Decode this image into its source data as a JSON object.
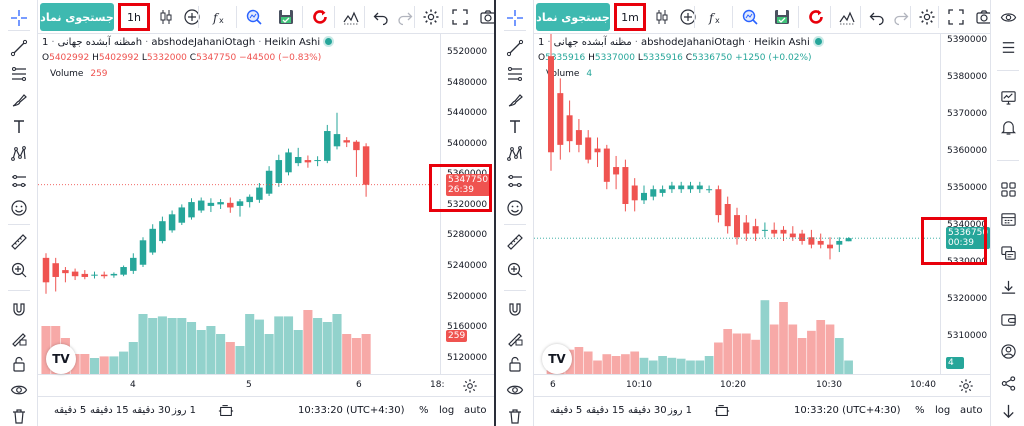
{
  "colors": {
    "up": "#26a69a",
    "down": "#ef5350",
    "accent": "#3eb9b0",
    "highlight": "#e8000b"
  },
  "left_pane": {
    "symbol_search_label": "جستجوی نماد",
    "interval": "1h",
    "legend": {
      "title": "مظنه آبشده جهانی",
      "interval": "1h",
      "source": "abshodeJahaniOtagh",
      "style": "Heikin Ashi",
      "o_label": "O",
      "o": "5402992",
      "h_label": "H",
      "h": "5402992",
      "l_label": "L",
      "l": "5332000",
      "c_label": "C",
      "c": "5347750",
      "change": "−44500 (−0.83%)",
      "volume_label": "Volume",
      "volume": "259"
    },
    "price_tag": "5347750",
    "countdown": "26:39",
    "volume_tag": "259",
    "timezone": "10:33:20 (UTC+4:30)",
    "log_label": "log",
    "pct_label": "%",
    "auto_label": "auto",
    "ranges": [
      "5 دقیقه",
      "15 دقیقه",
      "30 دقیقه",
      "1 روز"
    ],
    "chart_data": {
      "type": "candlestick",
      "title": "",
      "style": "Heikin Ashi",
      "y_ticks": [
        5520000,
        5480000,
        5440000,
        5400000,
        5360000,
        5320000,
        5280000,
        5240000,
        5200000,
        5160000,
        5120000
      ],
      "ylim": [
        5100000,
        5545000
      ],
      "x_ticks": [
        "4",
        "5",
        "6",
        "18:"
      ],
      "candles": [
        {
          "o": 5252000,
          "h": 5258000,
          "l": 5205000,
          "c": 5220000
        },
        {
          "o": 5245000,
          "h": 5252000,
          "l": 5208000,
          "c": 5227000
        },
        {
          "o": 5236000,
          "h": 5240000,
          "l": 5220000,
          "c": 5232000
        },
        {
          "o": 5234000,
          "h": 5238000,
          "l": 5223000,
          "c": 5228000
        },
        {
          "o": 5231000,
          "h": 5236000,
          "l": 5224000,
          "c": 5227000
        },
        {
          "o": 5229000,
          "h": 5234000,
          "l": 5225000,
          "c": 5230000
        },
        {
          "o": 5230000,
          "h": 5234000,
          "l": 5225000,
          "c": 5228000
        },
        {
          "o": 5229000,
          "h": 5233000,
          "l": 5226000,
          "c": 5231000
        },
        {
          "o": 5230000,
          "h": 5242000,
          "l": 5228000,
          "c": 5240000
        },
        {
          "o": 5235000,
          "h": 5258000,
          "l": 5231000,
          "c": 5252000
        },
        {
          "o": 5243000,
          "h": 5279000,
          "l": 5240000,
          "c": 5275000
        },
        {
          "o": 5259000,
          "h": 5296000,
          "l": 5256000,
          "c": 5290000
        },
        {
          "o": 5274000,
          "h": 5306000,
          "l": 5271000,
          "c": 5300000
        },
        {
          "o": 5288000,
          "h": 5314000,
          "l": 5285000,
          "c": 5309000
        },
        {
          "o": 5298000,
          "h": 5322000,
          "l": 5295000,
          "c": 5318000
        },
        {
          "o": 5305000,
          "h": 5330000,
          "l": 5302000,
          "c": 5325000
        },
        {
          "o": 5314000,
          "h": 5331000,
          "l": 5311000,
          "c": 5327000
        },
        {
          "o": 5320000,
          "h": 5330000,
          "l": 5312000,
          "c": 5324000
        },
        {
          "o": 5322000,
          "h": 5329000,
          "l": 5316000,
          "c": 5325000
        },
        {
          "o": 5324000,
          "h": 5331000,
          "l": 5311000,
          "c": 5318000
        },
        {
          "o": 5320000,
          "h": 5329000,
          "l": 5306000,
          "c": 5326000
        },
        {
          "o": 5325000,
          "h": 5335000,
          "l": 5318000,
          "c": 5332000
        },
        {
          "o": 5328000,
          "h": 5350000,
          "l": 5324000,
          "c": 5344000
        },
        {
          "o": 5336000,
          "h": 5372000,
          "l": 5333000,
          "c": 5366000
        },
        {
          "o": 5350000,
          "h": 5387000,
          "l": 5345000,
          "c": 5380000
        },
        {
          "o": 5364000,
          "h": 5395000,
          "l": 5360000,
          "c": 5390000
        },
        {
          "o": 5376000,
          "h": 5396000,
          "l": 5372000,
          "c": 5384000
        },
        {
          "o": 5380000,
          "h": 5386000,
          "l": 5370000,
          "c": 5377000
        },
        {
          "o": 5379000,
          "h": 5385000,
          "l": 5372000,
          "c": 5380000
        },
        {
          "o": 5379000,
          "h": 5426000,
          "l": 5376000,
          "c": 5418000
        },
        {
          "o": 5398000,
          "h": 5442000,
          "l": 5394000,
          "c": 5414000
        },
        {
          "o": 5406000,
          "h": 5410000,
          "l": 5397000,
          "c": 5403000
        },
        {
          "o": 5404000,
          "h": 5406000,
          "l": 5358000,
          "c": 5393000
        },
        {
          "o": 5398000,
          "h": 5402000,
          "l": 5332000,
          "c": 5347750
        }
      ],
      "volume": [
        60,
        60,
        45,
        25,
        25,
        20,
        22,
        22,
        28,
        40,
        75,
        70,
        72,
        70,
        70,
        65,
        55,
        60,
        50,
        40,
        35,
        75,
        68,
        50,
        72,
        72,
        55,
        80,
        70,
        65,
        75,
        50,
        45,
        50
      ]
    }
  },
  "right_pane": {
    "symbol_search_label": "جستجوی نماد",
    "interval": "1m",
    "legend": {
      "title": "مظنه آبشده جهانی",
      "interval": "1",
      "source": "abshodeJahaniOtagh",
      "style": "Heikin Ashi",
      "o_label": "O",
      "o": "5335916",
      "h_label": "H",
      "h": "5337000",
      "l_label": "L",
      "l": "5335916",
      "c_label": "C",
      "c": "5336750",
      "change": "+1250 (+0.02%)",
      "volume_label": "Volume",
      "volume": "4"
    },
    "price_tag": "5336750",
    "countdown": "00:39",
    "volume_tag": "4",
    "timezone": "10:33:20 (UTC+4:30)",
    "log_label": "log",
    "pct_label": "%",
    "auto_label": "auto",
    "ranges": [
      "5 دقیقه",
      "15 دقیقه",
      "30 دقیقه",
      "1 روز"
    ],
    "chart_data": {
      "type": "candlestick",
      "title": "",
      "style": "Heikin Ashi",
      "y_ticks": [
        5390000,
        5380000,
        5370000,
        5360000,
        5350000,
        5340000,
        5330000,
        5320000,
        5310000
      ],
      "ylim": [
        5300000,
        5392000
      ],
      "x_ticks": [
        "6",
        "10:10",
        "10:20",
        "10:30",
        "10:40"
      ],
      "candles": [
        {
          "o": 5386000,
          "h": 5392000,
          "l": 5355000,
          "c": 5360000
        },
        {
          "o": 5376000,
          "h": 5380000,
          "l": 5358000,
          "c": 5362000
        },
        {
          "o": 5370000,
          "h": 5374000,
          "l": 5360000,
          "c": 5363000
        },
        {
          "o": 5366000,
          "h": 5369000,
          "l": 5360000,
          "c": 5362000
        },
        {
          "o": 5364000,
          "h": 5366000,
          "l": 5357000,
          "c": 5358000
        },
        {
          "o": 5361000,
          "h": 5364000,
          "l": 5356000,
          "c": 5360000
        },
        {
          "o": 5361000,
          "h": 5362000,
          "l": 5350000,
          "c": 5352000
        },
        {
          "o": 5356000,
          "h": 5359000,
          "l": 5350000,
          "c": 5354000
        },
        {
          "o": 5356000,
          "h": 5358000,
          "l": 5344000,
          "c": 5346000
        },
        {
          "o": 5351000,
          "h": 5353000,
          "l": 5344000,
          "c": 5347000
        },
        {
          "o": 5347000,
          "h": 5351000,
          "l": 5346000,
          "c": 5349000
        },
        {
          "o": 5348000,
          "h": 5351000,
          "l": 5347000,
          "c": 5350000
        },
        {
          "o": 5349000,
          "h": 5351000,
          "l": 5348000,
          "c": 5350000
        },
        {
          "o": 5350000,
          "h": 5352000,
          "l": 5349000,
          "c": 5351000
        },
        {
          "o": 5350000,
          "h": 5352000,
          "l": 5349000,
          "c": 5351000
        },
        {
          "o": 5350000,
          "h": 5352000,
          "l": 5349000,
          "c": 5351000
        },
        {
          "o": 5350000,
          "h": 5352000,
          "l": 5349000,
          "c": 5351000
        },
        {
          "o": 5350000,
          "h": 5351000,
          "l": 5349000,
          "c": 5350000
        },
        {
          "o": 5350000,
          "h": 5351000,
          "l": 5341000,
          "c": 5343000
        },
        {
          "o": 5346000,
          "h": 5348000,
          "l": 5338000,
          "c": 5340000
        },
        {
          "o": 5343000,
          "h": 5345000,
          "l": 5335000,
          "c": 5337000
        },
        {
          "o": 5341000,
          "h": 5343000,
          "l": 5336000,
          "c": 5338000
        },
        {
          "o": 5340000,
          "h": 5342000,
          "l": 5336000,
          "c": 5338000
        },
        {
          "o": 5339000,
          "h": 5341000,
          "l": 5337000,
          "c": 5339000
        },
        {
          "o": 5339000,
          "h": 5341000,
          "l": 5337000,
          "c": 5338000
        },
        {
          "o": 5339000,
          "h": 5340000,
          "l": 5336000,
          "c": 5338000
        },
        {
          "o": 5338000,
          "h": 5340000,
          "l": 5336000,
          "c": 5337000
        },
        {
          "o": 5338000,
          "h": 5339000,
          "l": 5335000,
          "c": 5336000
        },
        {
          "o": 5337000,
          "h": 5339000,
          "l": 5334000,
          "c": 5335000
        },
        {
          "o": 5336000,
          "h": 5338000,
          "l": 5334000,
          "c": 5335000
        },
        {
          "o": 5335000,
          "h": 5337000,
          "l": 5331000,
          "c": 5334000
        },
        {
          "o": 5335000,
          "h": 5337000,
          "l": 5333000,
          "c": 5336000
        },
        {
          "o": 5335916,
          "h": 5337000,
          "l": 5335916,
          "c": 5336750
        }
      ],
      "volume": [
        20,
        25,
        27,
        30,
        25,
        15,
        22,
        20,
        22,
        25,
        18,
        15,
        20,
        18,
        17,
        15,
        15,
        20,
        35,
        50,
        45,
        45,
        38,
        82,
        55,
        80,
        55,
        40,
        48,
        60,
        55,
        40,
        15
      ]
    }
  },
  "icons": {
    "left_toolbar": [
      "crosshair-icon",
      "trendline-icon",
      "fib-icon",
      "brush-icon",
      "text-icon",
      "pattern-icon",
      "prediction-icon",
      "emoji-icon",
      "ruler-icon",
      "zoom-in-icon",
      "magnet-icon",
      "lock-drawing-icon",
      "lock-icon",
      "eye-icon",
      "trash-icon"
    ],
    "right_sidebar": [
      "watchlist-icon",
      "menu-icon",
      "chart-icon",
      "alarm-icon",
      "grid-icon",
      "calendar-icon",
      "chat-icon",
      "download-icon",
      "wallet-icon",
      "user-icon",
      "share-icon",
      "arrow-down-icon"
    ]
  }
}
